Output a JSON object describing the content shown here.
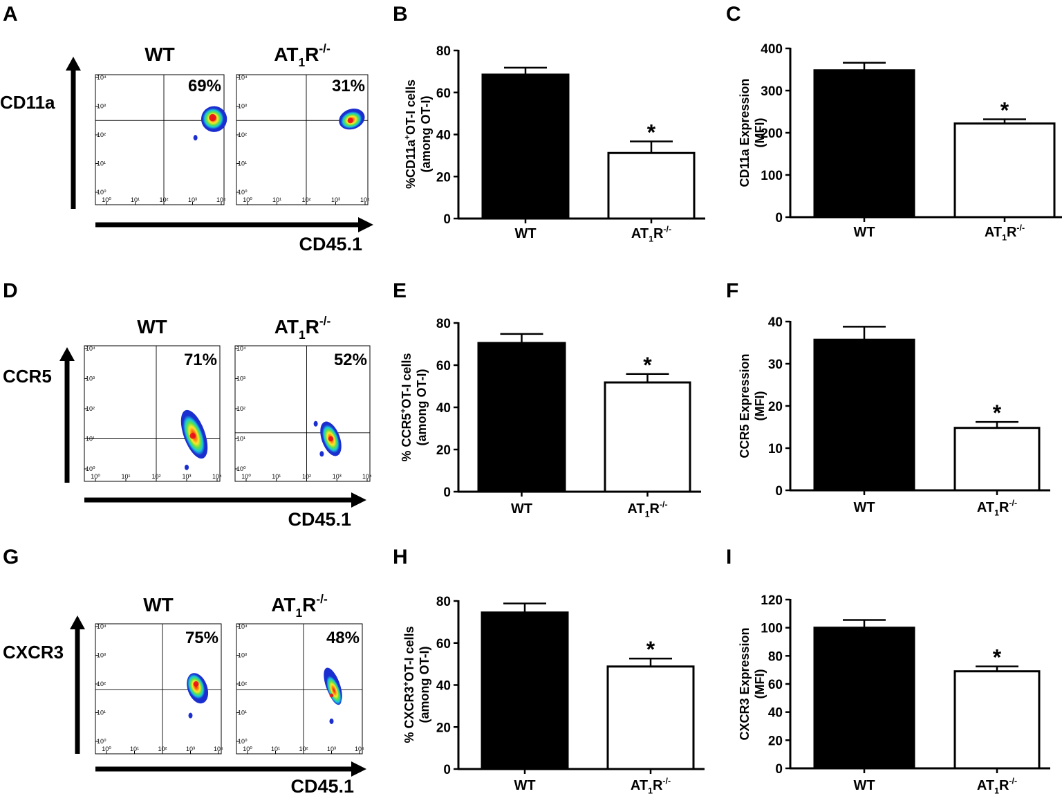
{
  "figure": {
    "panel_letters": [
      "A",
      "B",
      "C",
      "D",
      "E",
      "F",
      "G",
      "H",
      "I"
    ]
  },
  "flow": [
    {
      "panel": "A",
      "marker": "CD11a",
      "xaxis_label": "CD45.1",
      "decades": [
        "10⁰",
        "10¹",
        "10²",
        "10³",
        "10⁴"
      ],
      "plots": [
        {
          "group": "WT",
          "percent": "69%",
          "cluster_x": [
            3.3,
            4.2
          ],
          "cluster_y": [
            2.1,
            3.0
          ],
          "peak": [
            3.7,
            2.6
          ],
          "extra_dots": [
            [
              3.1,
              1.9
            ]
          ]
        },
        {
          "group": "AT1R-/-",
          "percent": "31%",
          "cluster_x": [
            3.1,
            4.0
          ],
          "cluster_y": [
            2.2,
            2.9
          ],
          "peak": [
            3.5,
            2.5
          ],
          "extra_dots": []
        }
      ],
      "gate": {
        "wt": [
          2.0,
          2.5
        ],
        "ko": [
          2.0,
          2.5
        ]
      }
    },
    {
      "panel": "D",
      "marker": "CCR5",
      "xaxis_label": "CD45.1",
      "decades": [
        "10⁰",
        "10¹",
        "10²",
        "10³",
        "10⁴"
      ],
      "plots": [
        {
          "group": "WT",
          "percent": "71%",
          "cluster_x": [
            2.9,
            3.6
          ],
          "cluster_y": [
            0.3,
            2.0
          ],
          "peak": [
            3.2,
            1.1
          ],
          "extra_dots": [
            [
              3.0,
              0.05
            ]
          ]
        },
        {
          "group": "AT1R-/-",
          "percent": "52%",
          "cluster_x": [
            2.5,
            3.1
          ],
          "cluster_y": [
            0.4,
            1.6
          ],
          "peak": [
            2.8,
            1.0
          ],
          "extra_dots": [
            [
              2.3,
              1.5
            ],
            [
              2.5,
              0.5
            ]
          ]
        }
      ],
      "gate": {
        "wt": [
          2.0,
          1.0
        ],
        "ko": [
          2.0,
          1.2
        ]
      }
    },
    {
      "panel": "G",
      "marker": "CXCR3",
      "xaxis_label": "CD45.1",
      "decades": [
        "10⁰",
        "10¹",
        "10²",
        "10³",
        "10⁴"
      ],
      "plots": [
        {
          "group": "WT",
          "percent": "75%",
          "cluster_x": [
            2.9,
            3.6
          ],
          "cluster_y": [
            1.3,
            2.4
          ],
          "peak": [
            3.2,
            2.0
          ],
          "extra_dots": [
            [
              3.0,
              0.9
            ]
          ]
        },
        {
          "group": "AT1R-/-",
          "percent": "48%",
          "cluster_x": [
            2.8,
            3.3
          ],
          "cluster_y": [
            1.3,
            2.6
          ],
          "peak": [
            3.0,
            1.6
          ],
          "extra_dots": [
            [
              3.0,
              0.7
            ]
          ]
        }
      ],
      "gate": {
        "wt": [
          2.0,
          1.8
        ],
        "ko": [
          2.0,
          1.8
        ]
      }
    }
  ],
  "chart_data": [
    {
      "panel": "B",
      "type": "bar",
      "categories": [
        "WT",
        "AT1R-/-"
      ],
      "values": [
        68.5,
        31.2
      ],
      "errors": [
        3.3,
        5.5
      ],
      "significance": [
        "",
        "*"
      ],
      "ylim": [
        0,
        80
      ],
      "ticks": [
        0,
        20,
        40,
        60,
        80
      ],
      "ylabel_prefix": "%CD11a",
      "ylabel_sup": "+",
      "ylabel_suffix": "OT-I cells",
      "ylabel_line2": "(among OT-I)"
    },
    {
      "panel": "C",
      "type": "bar",
      "categories": [
        "WT",
        "AT1R-/-"
      ],
      "values": [
        348,
        222
      ],
      "errors": [
        18,
        10
      ],
      "significance": [
        "",
        "*"
      ],
      "ylim": [
        0,
        400
      ],
      "ticks": [
        0,
        100,
        200,
        300,
        400
      ],
      "ylabel_prefix": "CD11a Expression",
      "ylabel_sup": "",
      "ylabel_suffix": "",
      "ylabel_line2": "(MFI)"
    },
    {
      "panel": "E",
      "type": "bar",
      "categories": [
        "WT",
        "AT1R-/-"
      ],
      "values": [
        70.5,
        51.8
      ],
      "errors": [
        4.3,
        4.0
      ],
      "significance": [
        "",
        "*"
      ],
      "ylim": [
        0,
        80
      ],
      "ticks": [
        0,
        20,
        40,
        60,
        80
      ],
      "ylabel_prefix": "% CCR5",
      "ylabel_sup": "+",
      "ylabel_suffix": "OT-I cells",
      "ylabel_line2": "(among OT-I)"
    },
    {
      "panel": "F",
      "type": "bar",
      "categories": [
        "WT",
        "AT1R-/-"
      ],
      "values": [
        35.7,
        14.8
      ],
      "errors": [
        3.1,
        1.4
      ],
      "significance": [
        "",
        "*"
      ],
      "ylim": [
        0,
        40
      ],
      "ticks": [
        0,
        10,
        20,
        30,
        40
      ],
      "ylabel_prefix": "CCR5 Expression",
      "ylabel_sup": "",
      "ylabel_suffix": "",
      "ylabel_line2": "(MFI)"
    },
    {
      "panel": "H",
      "type": "bar",
      "categories": [
        "WT",
        "AT1R-/-"
      ],
      "values": [
        74.5,
        48.8
      ],
      "errors": [
        4.3,
        3.8
      ],
      "significance": [
        "",
        "*"
      ],
      "ylim": [
        0,
        80
      ],
      "ticks": [
        0,
        20,
        40,
        60,
        80
      ],
      "ylabel_prefix": "% CXCR3",
      "ylabel_sup": "+",
      "ylabel_suffix": "OT-I cells",
      "ylabel_line2": "(among OT-I)"
    },
    {
      "panel": "I",
      "type": "bar",
      "categories": [
        "WT",
        "AT1R-/-"
      ],
      "values": [
        100,
        69
      ],
      "errors": [
        5.5,
        3.5
      ],
      "significance": [
        "",
        "*"
      ],
      "ylim": [
        0,
        120
      ],
      "ticks": [
        0,
        20,
        40,
        60,
        80,
        100,
        120
      ],
      "ylabel_prefix": "CXCR3  Expression",
      "ylabel_sup": "",
      "ylabel_suffix": "",
      "ylabel_line2": "(MFI)"
    }
  ],
  "colors": {
    "wt_bar": "#000000",
    "ko_bar": "#ffffff",
    "axis": "#000000"
  }
}
